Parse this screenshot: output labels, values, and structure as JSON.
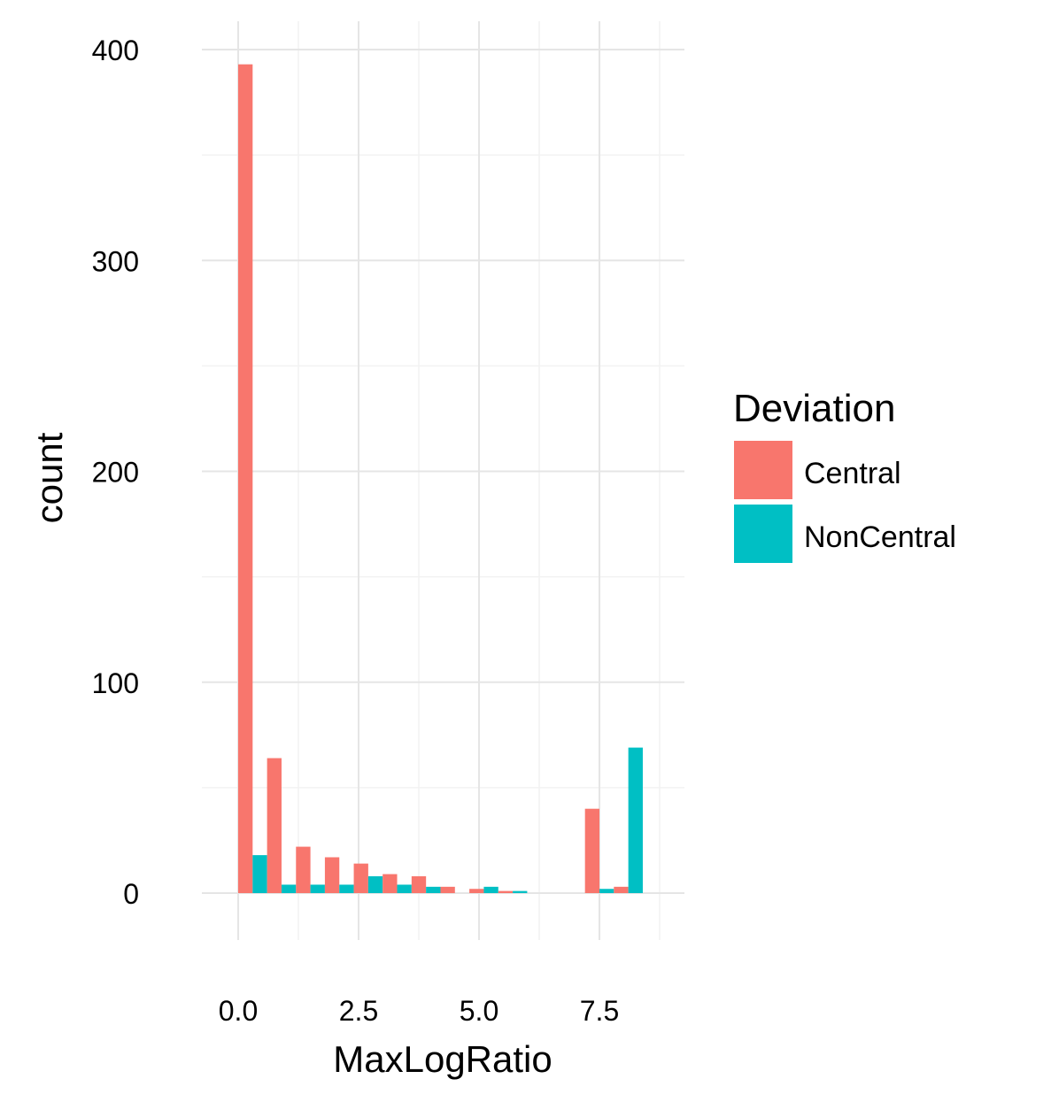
{
  "chart_data": {
    "type": "bar",
    "xlabel": "MaxLogRatio",
    "ylabel": "count",
    "xlim": [
      -0.75,
      8.9
    ],
    "ylim": [
      -20,
      405
    ],
    "x_ticks": [
      {
        "value": 0,
        "label": "0.0"
      },
      {
        "value": 2.5,
        "label": "2.5"
      },
      {
        "value": 5,
        "label": "5.0"
      },
      {
        "value": 7.5,
        "label": "7.5"
      }
    ],
    "y_ticks": [
      {
        "value": 0,
        "label": "0"
      },
      {
        "value": 100,
        "label": "100"
      },
      {
        "value": 200,
        "label": "200"
      },
      {
        "value": 300,
        "label": "300"
      },
      {
        "value": 400,
        "label": "400"
      }
    ],
    "x_minor_ticks": [
      1.25,
      3.75,
      6.25,
      8.75
    ],
    "y_minor_ticks": [
      50,
      150,
      250,
      350
    ],
    "grid": true,
    "bin_width": 0.6,
    "bin_centers": [
      0.3,
      0.9,
      1.5,
      2.1,
      2.7,
      3.3,
      3.9,
      4.5,
      5.1,
      5.7,
      6.3,
      6.9,
      7.5,
      8.1,
      8.7
    ],
    "legend": {
      "title": "Deviation",
      "position": "right"
    },
    "series": [
      {
        "name": "Central",
        "color": "#F8766D",
        "values": [
          393,
          64,
          22,
          17,
          14,
          9,
          8,
          3,
          2,
          1,
          0,
          0,
          40,
          3,
          0
        ]
      },
      {
        "name": "NonCentral",
        "color": "#00BFC4",
        "values": [
          18,
          4,
          4,
          4,
          8,
          4,
          3,
          0,
          3,
          1,
          0,
          0,
          2,
          69,
          0
        ]
      }
    ]
  }
}
